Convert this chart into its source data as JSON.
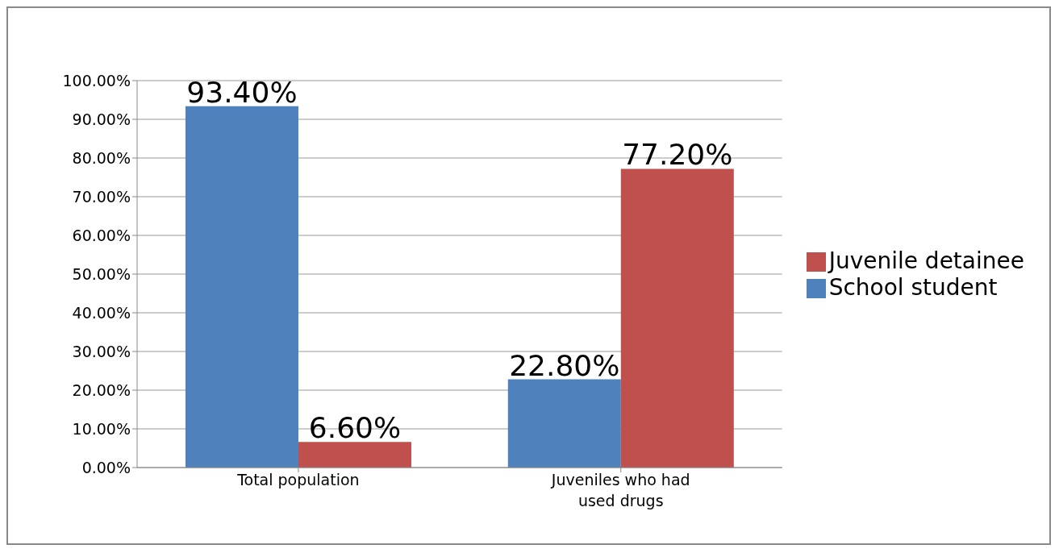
{
  "chart_data": {
    "type": "bar",
    "categories": [
      "Total population",
      "Juveniles who had used drugs"
    ],
    "series": [
      {
        "name": "School student",
        "color": "#4f81bd",
        "values": [
          93.4,
          22.8
        ],
        "value_labels": [
          "93.40%",
          "22.80%"
        ]
      },
      {
        "name": "Juvenile detainee",
        "color": "#c0504d",
        "values": [
          6.6,
          77.2
        ],
        "value_labels": [
          "6.60%",
          "77.20%"
        ]
      }
    ],
    "ylim": [
      0,
      100
    ],
    "yticks": [
      {
        "value": 0,
        "label": "0.00%"
      },
      {
        "value": 10,
        "label": "10.00%"
      },
      {
        "value": 20,
        "label": "20.00%"
      },
      {
        "value": 30,
        "label": "30.00%"
      },
      {
        "value": 40,
        "label": "40.00%"
      },
      {
        "value": 50,
        "label": "50.00%"
      },
      {
        "value": 60,
        "label": "60.00%"
      },
      {
        "value": 70,
        "label": "70.00%"
      },
      {
        "value": 80,
        "label": "80.00%"
      },
      {
        "value": 90,
        "label": "90.00%"
      },
      {
        "value": 100,
        "label": "100.00%"
      }
    ],
    "grid": "y",
    "legend": "right"
  }
}
